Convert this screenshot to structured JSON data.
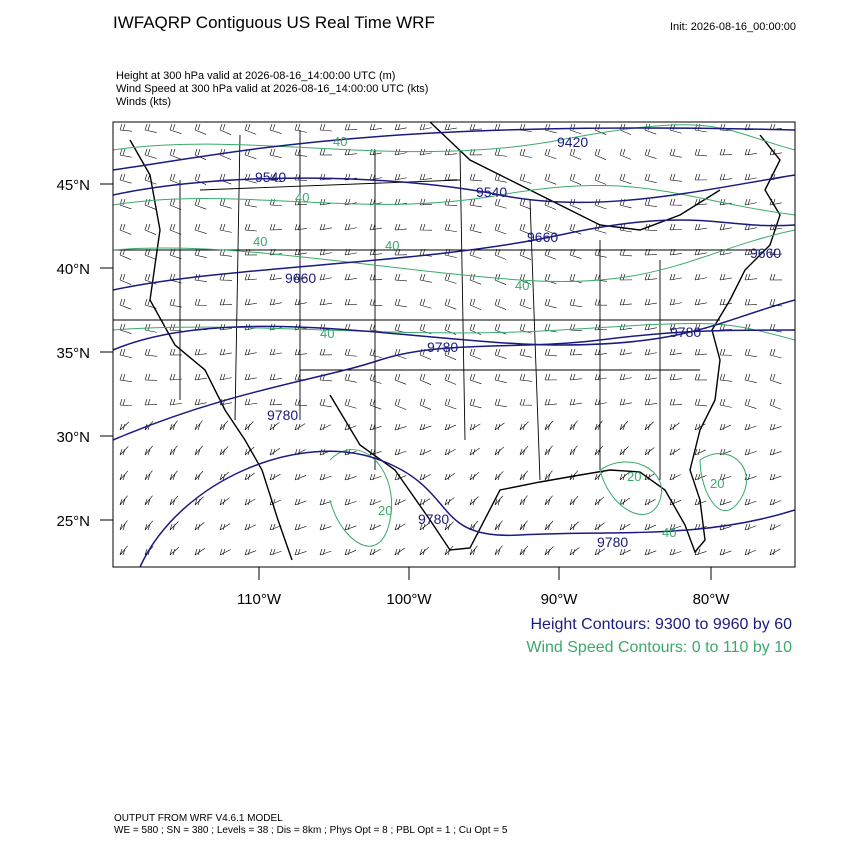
{
  "header": {
    "title": "IWFAQRP Contiguous US Real Time WRF",
    "init": "Init: 2026-08-16_00:00:00",
    "fields": [
      "Height at 300 hPa valid at 2026-08-16_14:00:00 UTC   (m)",
      "Wind Speed at 300 hPa valid at 2026-08-16_14:00:00 UTC   (kts)",
      "Winds   (kts)"
    ]
  },
  "map": {
    "lat_labels": [
      "45°N",
      "40°N",
      "35°N",
      "30°N",
      "25°N"
    ],
    "lon_labels": [
      "110°W",
      "100°W",
      "90°W",
      "80°W"
    ],
    "height_labels": [
      "9420",
      "9540",
      "9540",
      "9660",
      "9660",
      "9660",
      "9780",
      "9780",
      "9780",
      "9780",
      "9780"
    ],
    "wind_labels": [
      "40",
      "40",
      "40",
      "40",
      "40",
      "40",
      "20",
      "20",
      "20",
      "40"
    ]
  },
  "legend": {
    "height": "Height Contours: 9300 to 9960 by 60",
    "wind": "Wind Speed Contours: 0 to 110 by 10"
  },
  "footer": {
    "line1": "OUTPUT FROM WRF V4.6.1 MODEL",
    "line2": "WE = 580 ; SN = 380 ; Levels = 38 ; Dis = 8km ; Phys Opt = 8 ; PBL Opt = 1 ; Cu Opt = 5"
  }
}
